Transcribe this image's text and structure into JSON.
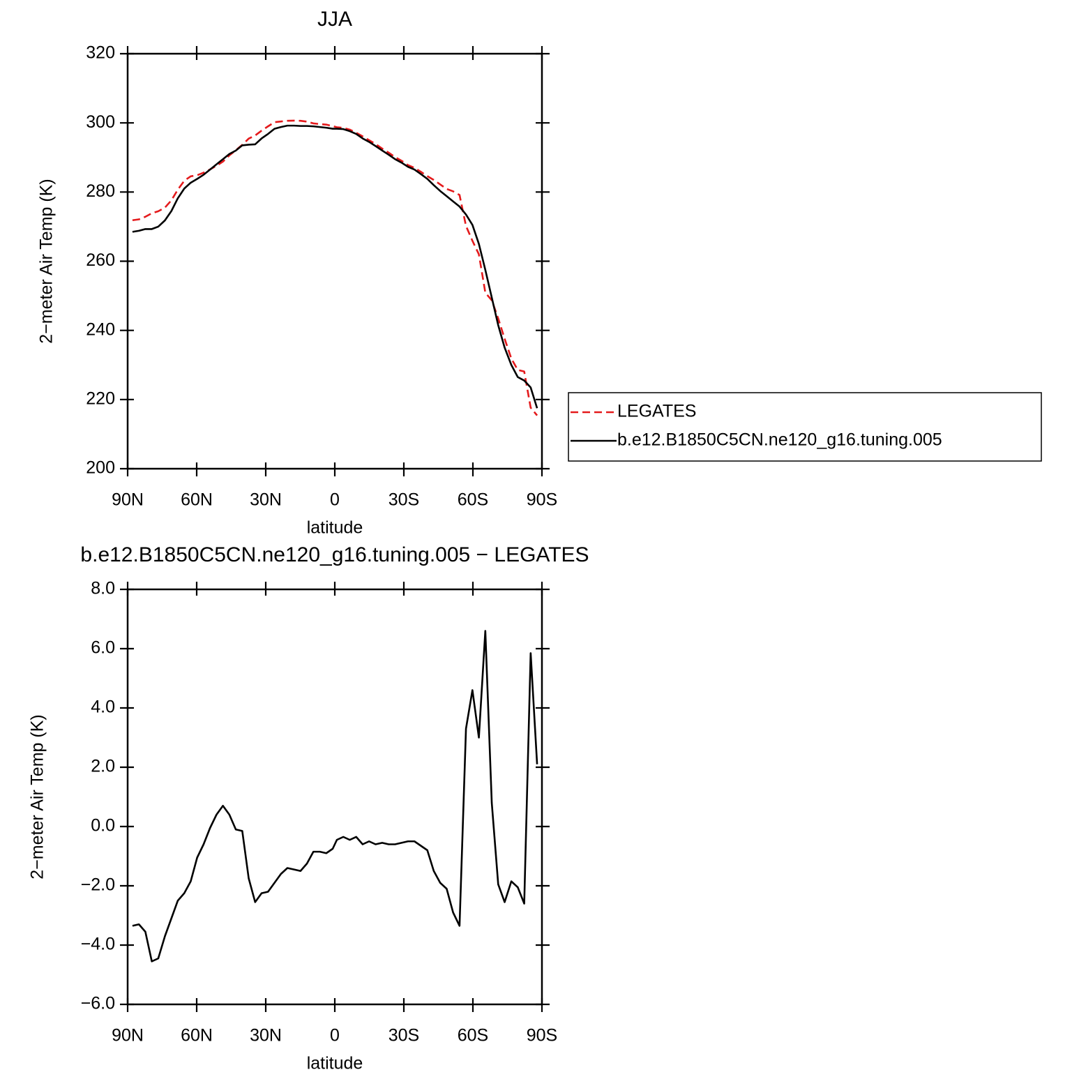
{
  "chart_data": [
    {
      "type": "line",
      "title": "JJA",
      "xlabel": "latitude",
      "ylabel": "2−meter Air Temp (K)",
      "x": [
        87.9,
        85.1,
        82.3,
        79.5,
        76.7,
        73.8,
        71.0,
        68.2,
        65.4,
        62.6,
        59.8,
        57.0,
        54.2,
        51.4,
        48.6,
        45.8,
        43.0,
        40.2,
        37.4,
        34.6,
        31.8,
        29.0,
        26.2,
        23.4,
        20.6,
        17.7,
        14.9,
        12.1,
        9.3,
        6.5,
        3.7,
        0.9,
        -0.9,
        -3.7,
        -6.5,
        -9.3,
        -12.1,
        -14.9,
        -17.7,
        -20.6,
        -23.4,
        -26.2,
        -29.0,
        -31.8,
        -34.6,
        -37.4,
        -40.2,
        -43.0,
        -45.8,
        -48.6,
        -51.4,
        -54.2,
        -57.0,
        -59.8,
        -62.6,
        -65.4,
        -68.2,
        -71.0,
        -73.8,
        -76.7,
        -79.5,
        -82.3,
        -85.1,
        -87.9
      ],
      "series": [
        {
          "name": "LEGATES",
          "color": "#e41a1c",
          "linestyle": "dashed",
          "values": [
            271.85,
            272.1,
            272.85,
            273.85,
            274.45,
            275.5,
            277.6,
            280.7,
            283.25,
            284.55,
            284.85,
            285.6,
            286.55,
            287.6,
            288.8,
            290.6,
            292.1,
            293.65,
            295.45,
            296.35,
            297.75,
            299.0,
            300.2,
            300.4,
            300.6,
            300.65,
            300.6,
            300.35,
            299.85,
            299.65,
            299.5,
            299.05,
            298.75,
            298.55,
            298.05,
            297.15,
            296.1,
            295.0,
            293.9,
            292.55,
            291.4,
            290.1,
            289.05,
            287.8,
            287.0,
            285.85,
            284.6,
            283.5,
            282.2,
            280.9,
            280.2,
            279.15,
            270.2,
            265.9,
            262.0,
            250.9,
            248.7,
            243.45,
            237.55,
            231.85,
            228.55,
            228.1,
            217.65,
            215.4
          ]
        },
        {
          "name": "b.e12.B1850C5CN.ne120_g16.tuning.005",
          "color": "#000000",
          "linestyle": "solid",
          "values": [
            268.5,
            268.8,
            269.3,
            269.3,
            270.0,
            271.8,
            274.5,
            278.2,
            281.0,
            282.7,
            283.8,
            285.0,
            286.5,
            288.0,
            289.5,
            291.0,
            292.0,
            293.5,
            293.7,
            293.8,
            295.5,
            296.8,
            298.3,
            298.8,
            299.2,
            299.2,
            299.1,
            299.1,
            299.0,
            298.8,
            298.6,
            298.3,
            298.3,
            298.2,
            297.6,
            296.8,
            295.5,
            294.5,
            293.3,
            292.0,
            290.8,
            289.5,
            288.5,
            287.3,
            286.5,
            285.2,
            283.8,
            282.0,
            280.3,
            278.8,
            277.3,
            275.8,
            273.5,
            270.5,
            265.0,
            257.5,
            249.5,
            241.5,
            235.0,
            230.0,
            226.5,
            225.5,
            223.5,
            217.5
          ]
        }
      ],
      "xlim": [
        90,
        -90
      ],
      "xticks": [
        {
          "value": 90,
          "label": "90N"
        },
        {
          "value": 60,
          "label": "60N"
        },
        {
          "value": 30,
          "label": "30N"
        },
        0,
        {
          "value": -30,
          "label": "30S"
        },
        {
          "value": -60,
          "label": "60S"
        },
        {
          "value": -90,
          "label": "90S"
        }
      ],
      "ylim": [
        200,
        320
      ],
      "yticks": [
        200,
        220,
        240,
        260,
        280,
        300,
        320
      ]
    },
    {
      "type": "line",
      "title": "b.e12.B1850C5CN.ne120_g16.tuning.005 − LEGATES",
      "xlabel": "latitude",
      "ylabel": "2−meter Air Temp (K)",
      "x": [
        87.9,
        85.1,
        82.3,
        79.5,
        76.7,
        73.8,
        71.0,
        68.2,
        65.4,
        62.6,
        59.8,
        57.0,
        54.2,
        51.4,
        48.6,
        45.8,
        43.0,
        40.2,
        37.4,
        34.6,
        31.8,
        29.0,
        26.2,
        23.4,
        20.6,
        17.7,
        14.9,
        12.1,
        9.3,
        6.5,
        3.7,
        0.9,
        -0.9,
        -3.7,
        -6.5,
        -9.3,
        -12.1,
        -14.9,
        -17.7,
        -20.6,
        -23.4,
        -26.2,
        -29.0,
        -31.8,
        -34.6,
        -37.4,
        -40.2,
        -43.0,
        -45.8,
        -48.6,
        -51.4,
        -54.2,
        -57.0,
        -59.8,
        -62.6,
        -65.4,
        -68.2,
        -71.0,
        -73.8,
        -76.7,
        -79.5,
        -82.3,
        -85.1,
        -87.9
      ],
      "series": [
        {
          "color": "#000000",
          "linestyle": "solid",
          "values": [
            -3.35,
            -3.3,
            -3.55,
            -4.55,
            -4.45,
            -3.7,
            -3.1,
            -2.5,
            -2.25,
            -1.85,
            -1.05,
            -0.6,
            -0.05,
            0.4,
            0.7,
            0.4,
            -0.1,
            -0.15,
            -1.75,
            -2.55,
            -2.25,
            -2.2,
            -1.9,
            -1.6,
            -1.4,
            -1.45,
            -1.5,
            -1.25,
            -0.85,
            -0.85,
            -0.9,
            -0.75,
            -0.45,
            -0.35,
            -0.45,
            -0.35,
            -0.6,
            -0.5,
            -0.6,
            -0.55,
            -0.6,
            -0.6,
            -0.55,
            -0.5,
            -0.5,
            -0.65,
            -0.8,
            -1.5,
            -1.9,
            -2.1,
            -2.9,
            -3.35,
            3.3,
            4.6,
            3.0,
            6.6,
            0.8,
            -1.95,
            -2.55,
            -1.85,
            -2.05,
            -2.6,
            5.85,
            2.1
          ]
        }
      ],
      "xlim": [
        90,
        -90
      ],
      "xticks": [
        {
          "value": 90,
          "label": "90N"
        },
        {
          "value": 60,
          "label": "60N"
        },
        {
          "value": 30,
          "label": "30N"
        },
        0,
        {
          "value": -30,
          "label": "30S"
        },
        {
          "value": -60,
          "label": "60S"
        },
        {
          "value": -90,
          "label": "90S"
        }
      ],
      "ylim": [
        -6,
        8
      ],
      "yticks": [
        {
          "value": -6,
          "label": "−6.0"
        },
        {
          "value": -4,
          "label": "−4.0"
        },
        {
          "value": -2,
          "label": "−2.0"
        },
        {
          "value": 0,
          "label": "0.0"
        },
        {
          "value": 2,
          "label": "2.0"
        },
        {
          "value": 4,
          "label": "4.0"
        },
        {
          "value": 6,
          "label": "6.0"
        },
        {
          "value": 8,
          "label": "8.0"
        }
      ]
    }
  ]
}
